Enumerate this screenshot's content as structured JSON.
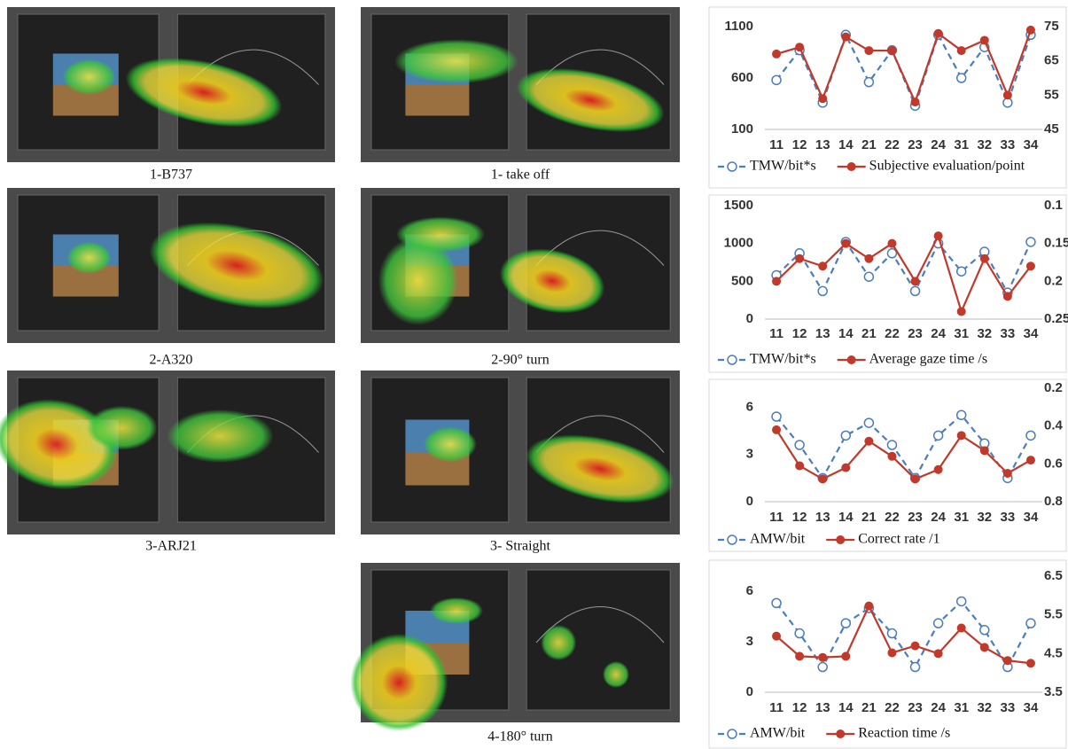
{
  "figures": [
    {
      "caption": "1-B737"
    },
    {
      "caption": "1- take off"
    },
    {
      "caption": "2-A320"
    },
    {
      "caption": "2-90° turn"
    },
    {
      "caption": "3-ARJ21"
    },
    {
      "caption": "3- Straight"
    },
    {
      "caption": "4-180° turn"
    }
  ],
  "chart_data": [
    {
      "type": "line",
      "categories": [
        "11",
        "12",
        "13",
        "14",
        "21",
        "22",
        "23",
        "24",
        "31",
        "32",
        "33",
        "34"
      ],
      "ylim": [
        100,
        1100
      ],
      "yticks": [
        100,
        600,
        1100
      ],
      "y2lim": [
        45,
        75
      ],
      "y2ticks": [
        45,
        55,
        65,
        75
      ],
      "series": [
        {
          "name": "TMW/bit*s",
          "color": "#4a7ebb",
          "dashed": true,
          "marker": "open-circle",
          "values": [
            580,
            870,
            360,
            1020,
            560,
            870,
            330,
            1020,
            600,
            900,
            360,
            1020
          ]
        },
        {
          "name": "Subjective evaluation/point",
          "color": "#c0392b",
          "dashed": false,
          "marker": "dot",
          "axis": "y2",
          "values": [
            67,
            69,
            54,
            72,
            68,
            68,
            53,
            73,
            68,
            71,
            55,
            74
          ]
        }
      ]
    },
    {
      "type": "line",
      "categories": [
        "11",
        "12",
        "13",
        "14",
        "21",
        "22",
        "23",
        "24",
        "31",
        "32",
        "33",
        "34"
      ],
      "ylim": [
        0,
        1500
      ],
      "yticks": [
        0,
        500,
        1000,
        1500
      ],
      "y2lim": [
        0.25,
        0.1
      ],
      "y2ticks": [
        0.1,
        0.15,
        0.2,
        0.25
      ],
      "series": [
        {
          "name": "TMW/bit*s",
          "color": "#4a7ebb",
          "dashed": true,
          "marker": "open-circle",
          "values": [
            580,
            870,
            370,
            1020,
            560,
            870,
            370,
            1000,
            630,
            890,
            350,
            1020
          ]
        },
        {
          "name": "Average gaze time /s",
          "color": "#c0392b",
          "dashed": false,
          "marker": "dot",
          "axis": "y2",
          "values": [
            0.2,
            0.17,
            0.18,
            0.15,
            0.17,
            0.15,
            0.2,
            0.14,
            0.24,
            0.17,
            0.22,
            0.18
          ]
        }
      ]
    },
    {
      "type": "line",
      "categories": [
        "11",
        "12",
        "13",
        "14",
        "21",
        "22",
        "23",
        "24",
        "31",
        "32",
        "33",
        "34"
      ],
      "ylim": [
        0,
        7.2
      ],
      "yticks": [
        0,
        3,
        6
      ],
      "y2lim": [
        0.8,
        0.2
      ],
      "y2ticks": [
        0.2,
        0.4,
        0.6,
        0.8
      ],
      "series": [
        {
          "name": "AMW/bit",
          "color": "#4a7ebb",
          "dashed": true,
          "marker": "open-circle",
          "values": [
            5.4,
            3.6,
            1.5,
            4.2,
            5.0,
            3.6,
            1.5,
            4.2,
            5.5,
            3.7,
            1.5,
            4.2
          ]
        },
        {
          "name": "Correct rate /1",
          "color": "#c0392b",
          "dashed": false,
          "marker": "dot",
          "axis": "y2",
          "values": [
            0.42,
            0.61,
            0.68,
            0.62,
            0.48,
            0.56,
            0.68,
            0.63,
            0.45,
            0.53,
            0.65,
            0.58
          ]
        }
      ]
    },
    {
      "type": "line",
      "categories": [
        "11",
        "12",
        "13",
        "14",
        "21",
        "22",
        "23",
        "24",
        "31",
        "32",
        "33",
        "34"
      ],
      "ylim": [
        0,
        6.9
      ],
      "yticks": [
        0,
        3,
        6
      ],
      "y2lim": [
        3.5,
        6.5
      ],
      "y2ticks": [
        3.5,
        4.5,
        5.5,
        6.5
      ],
      "series": [
        {
          "name": "AMW/bit",
          "color": "#4a7ebb",
          "dashed": true,
          "marker": "open-circle",
          "values": [
            5.3,
            3.5,
            1.5,
            4.1,
            5.0,
            3.5,
            1.5,
            4.1,
            5.4,
            3.7,
            1.5,
            4.1
          ]
        },
        {
          "name": "Reaction time /s",
          "color": "#c0392b",
          "dashed": false,
          "marker": "dot",
          "axis": "y2",
          "values": [
            4.95,
            4.43,
            4.4,
            4.43,
            5.73,
            4.52,
            4.7,
            4.5,
            5.16,
            4.66,
            4.32,
            4.25
          ]
        }
      ]
    }
  ]
}
